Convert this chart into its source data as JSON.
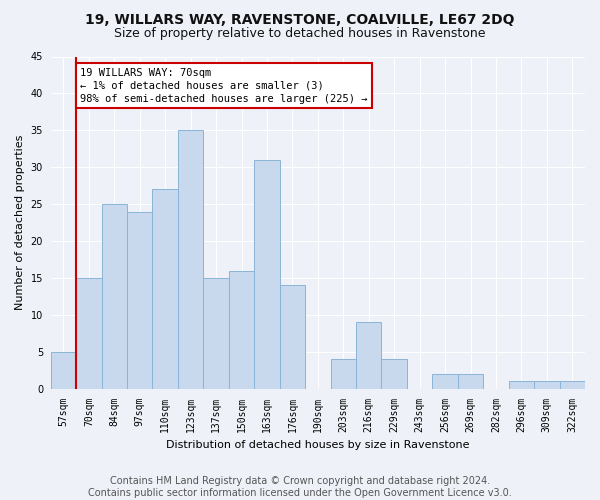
{
  "title": "19, WILLARS WAY, RAVENSTONE, COALVILLE, LE67 2DQ",
  "subtitle": "Size of property relative to detached houses in Ravenstone",
  "xlabel": "Distribution of detached houses by size in Ravenstone",
  "ylabel": "Number of detached properties",
  "categories": [
    "57sqm",
    "70sqm",
    "84sqm",
    "97sqm",
    "110sqm",
    "123sqm",
    "137sqm",
    "150sqm",
    "163sqm",
    "176sqm",
    "190sqm",
    "203sqm",
    "216sqm",
    "229sqm",
    "243sqm",
    "256sqm",
    "269sqm",
    "282sqm",
    "296sqm",
    "309sqm",
    "322sqm"
  ],
  "values": [
    5,
    15,
    25,
    24,
    27,
    35,
    15,
    16,
    31,
    14,
    0,
    4,
    9,
    4,
    0,
    2,
    2,
    0,
    1,
    1,
    1
  ],
  "bar_color": "#c8d9ee",
  "bar_edge_color": "#8ab4d8",
  "vline_color": "#cc0000",
  "annotation_line1": "19 WILLARS WAY: 70sqm",
  "annotation_line2": "← 1% of detached houses are smaller (3)",
  "annotation_line3": "98% of semi-detached houses are larger (225) →",
  "annotation_box_facecolor": "#ffffff",
  "annotation_box_edgecolor": "#cc0000",
  "ylim": [
    0,
    45
  ],
  "yticks": [
    0,
    5,
    10,
    15,
    20,
    25,
    30,
    35,
    40,
    45
  ],
  "footer_line1": "Contains HM Land Registry data © Crown copyright and database right 2024.",
  "footer_line2": "Contains public sector information licensed under the Open Government Licence v3.0.",
  "bg_color": "#eef2f8",
  "grid_color": "#ffffff",
  "title_fontsize": 10,
  "subtitle_fontsize": 9,
  "axis_fontsize": 8,
  "tick_fontsize": 7,
  "footer_fontsize": 7,
  "vline_index": 1
}
